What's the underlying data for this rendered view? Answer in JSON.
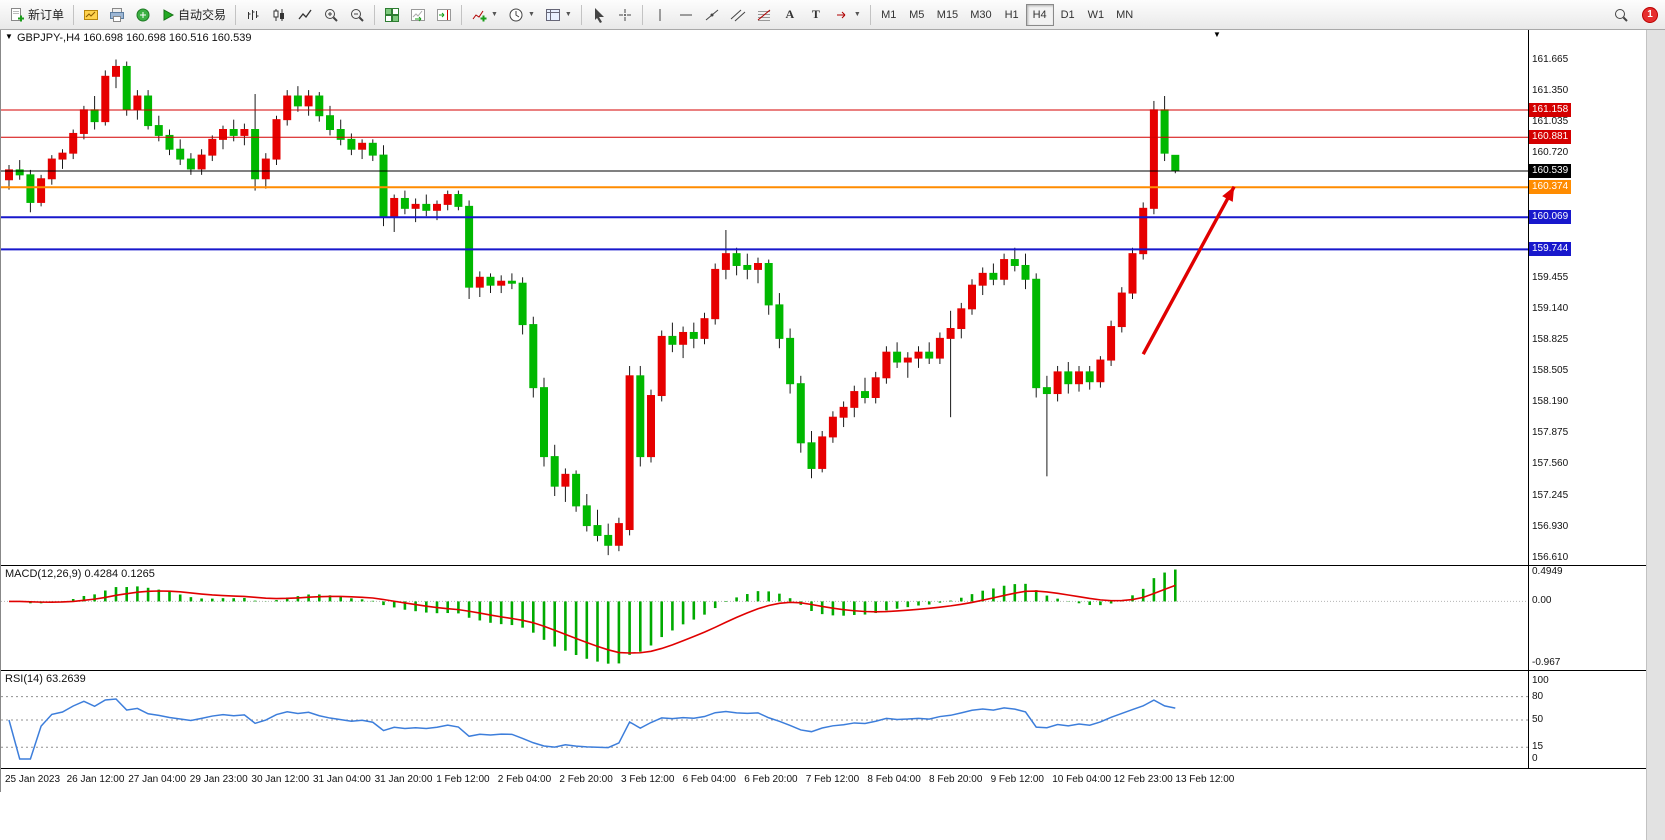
{
  "toolbar": {
    "new_order": "新订单",
    "autotrading": "自动交易",
    "text_tool": "A",
    "label_tool": "T",
    "timeframes": [
      "M1",
      "M5",
      "M15",
      "M30",
      "H1",
      "H4",
      "D1",
      "W1",
      "MN"
    ],
    "active_timeframe": "H4",
    "notification_badge": "1"
  },
  "chart_header": {
    "title": "GBPJPY-,H4 160.698 160.698 160.516 160.539"
  },
  "chart_data": {
    "type": "candlestick",
    "symbol": "GBPJPY-",
    "period": "H4",
    "ohlc_display": {
      "open": "160.698",
      "high": "160.698",
      "low": "160.516",
      "close": "160.539"
    },
    "plot_price_max": 161.97,
    "plot_price_min": 156.55,
    "axis_labels": [
      "161.665",
      "161.350",
      "161.035",
      "160.720",
      "159.455",
      "159.140",
      "158.825",
      "158.505",
      "158.190",
      "157.875",
      "157.560",
      "157.245",
      "156.930",
      "156.610"
    ],
    "price_lines": [
      {
        "price": 161.158,
        "color": "#d40000",
        "badge": "161.158",
        "width": 1
      },
      {
        "price": 160.881,
        "color": "#d40000",
        "badge": "160.881",
        "width": 1
      },
      {
        "price": 160.539,
        "color": "#000000",
        "badge": "160.539",
        "width": 1
      },
      {
        "price": 160.374,
        "color": "#ff8c00",
        "badge": "160.374",
        "width": 2
      },
      {
        "price": 160.069,
        "color": "#1818cc",
        "badge": "160.069",
        "width": 2
      },
      {
        "price": 159.744,
        "color": "#1818cc",
        "badge": "159.744",
        "width": 2
      }
    ],
    "colors": {
      "up": "#e60000",
      "down": "#00b800",
      "wick": "#1a1a1a"
    },
    "arrow": {
      "from_bar": 106,
      "from_price": 158.68,
      "to_bar": 114.5,
      "to_price": 160.38,
      "color": "#e00000"
    },
    "time_labels": [
      "25 Jan 2023",
      "26 Jan 12:00",
      "27 Jan 04:00",
      "29 Jan 23:00",
      "30 Jan 12:00",
      "31 Jan 04:00",
      "31 Jan 20:00",
      "1 Feb 12:00",
      "2 Feb 04:00",
      "2 Feb 20:00",
      "3 Feb 12:00",
      "6 Feb 04:00",
      "6 Feb 20:00",
      "7 Feb 12:00",
      "8 Feb 04:00",
      "8 Feb 20:00",
      "9 Feb 12:00",
      "10 Feb 04:00",
      "12 Feb 23:00",
      "13 Feb 12:00"
    ],
    "candles": [
      [
        160.45,
        160.6,
        160.35,
        160.55
      ],
      [
        160.55,
        160.65,
        160.45,
        160.5
      ],
      [
        160.5,
        160.55,
        160.12,
        160.22
      ],
      [
        160.22,
        160.5,
        160.18,
        160.46
      ],
      [
        160.46,
        160.7,
        160.4,
        160.66
      ],
      [
        160.66,
        160.76,
        160.56,
        160.72
      ],
      [
        160.72,
        160.96,
        160.66,
        160.92
      ],
      [
        160.92,
        161.2,
        160.86,
        161.16
      ],
      [
        161.16,
        161.3,
        160.96,
        161.04
      ],
      [
        161.04,
        161.56,
        161.0,
        161.5
      ],
      [
        161.5,
        161.67,
        161.38,
        161.6
      ],
      [
        161.6,
        161.65,
        161.1,
        161.16
      ],
      [
        161.16,
        161.36,
        161.06,
        161.3
      ],
      [
        161.3,
        161.36,
        160.96,
        161.0
      ],
      [
        161.0,
        161.1,
        160.84,
        160.9
      ],
      [
        160.9,
        160.96,
        160.7,
        160.76
      ],
      [
        160.76,
        160.86,
        160.6,
        160.66
      ],
      [
        160.66,
        160.72,
        160.5,
        160.56
      ],
      [
        160.56,
        160.76,
        160.5,
        160.7
      ],
      [
        160.7,
        160.9,
        160.64,
        160.86
      ],
      [
        160.86,
        161.0,
        160.76,
        160.96
      ],
      [
        160.96,
        161.06,
        160.84,
        160.9
      ],
      [
        160.9,
        161.02,
        160.8,
        160.96
      ],
      [
        160.96,
        161.32,
        160.34,
        160.46
      ],
      [
        160.46,
        160.72,
        160.36,
        160.66
      ],
      [
        160.66,
        161.1,
        160.6,
        161.06
      ],
      [
        161.06,
        161.36,
        161.0,
        161.3
      ],
      [
        161.3,
        161.4,
        161.14,
        161.2
      ],
      [
        161.2,
        161.36,
        161.1,
        161.3
      ],
      [
        161.3,
        161.34,
        161.04,
        161.1
      ],
      [
        161.1,
        161.2,
        160.9,
        160.96
      ],
      [
        160.96,
        161.06,
        160.8,
        160.86
      ],
      [
        160.86,
        160.92,
        160.7,
        160.76
      ],
      [
        160.76,
        160.86,
        160.66,
        160.82
      ],
      [
        160.82,
        160.86,
        160.64,
        160.7
      ],
      [
        160.7,
        160.8,
        159.98,
        160.08
      ],
      [
        160.08,
        160.3,
        159.92,
        160.26
      ],
      [
        160.26,
        160.34,
        160.1,
        160.16
      ],
      [
        160.16,
        160.26,
        160.02,
        160.2
      ],
      [
        160.2,
        160.3,
        160.08,
        160.14
      ],
      [
        160.14,
        160.24,
        160.04,
        160.2
      ],
      [
        160.2,
        160.34,
        160.14,
        160.3
      ],
      [
        160.3,
        160.34,
        160.14,
        160.18
      ],
      [
        160.18,
        160.24,
        159.24,
        159.36
      ],
      [
        159.36,
        159.52,
        159.26,
        159.46
      ],
      [
        159.46,
        159.5,
        159.3,
        159.38
      ],
      [
        159.38,
        159.48,
        159.3,
        159.42
      ],
      [
        159.42,
        159.5,
        159.34,
        159.4
      ],
      [
        159.4,
        159.46,
        158.88,
        158.98
      ],
      [
        158.98,
        159.06,
        158.24,
        158.34
      ],
      [
        158.34,
        158.44,
        157.54,
        157.64
      ],
      [
        157.64,
        157.76,
        157.24,
        157.34
      ],
      [
        157.34,
        157.52,
        157.18,
        157.46
      ],
      [
        157.46,
        157.5,
        157.08,
        157.14
      ],
      [
        157.14,
        157.26,
        156.88,
        156.94
      ],
      [
        156.94,
        157.1,
        156.78,
        156.84
      ],
      [
        156.84,
        156.96,
        156.64,
        156.74
      ],
      [
        156.74,
        157.02,
        156.68,
        156.96
      ],
      [
        156.9,
        158.56,
        156.84,
        158.46
      ],
      [
        158.46,
        158.56,
        157.54,
        157.64
      ],
      [
        157.64,
        158.32,
        157.58,
        158.26
      ],
      [
        158.26,
        158.92,
        158.2,
        158.86
      ],
      [
        158.86,
        159.0,
        158.7,
        158.78
      ],
      [
        158.78,
        158.96,
        158.64,
        158.9
      ],
      [
        158.9,
        159.0,
        158.74,
        158.84
      ],
      [
        158.84,
        159.1,
        158.78,
        159.04
      ],
      [
        159.04,
        159.6,
        158.98,
        159.54
      ],
      [
        159.54,
        159.94,
        159.44,
        159.7
      ],
      [
        159.7,
        159.76,
        159.48,
        159.58
      ],
      [
        159.58,
        159.7,
        159.44,
        159.54
      ],
      [
        159.54,
        159.66,
        159.4,
        159.6
      ],
      [
        159.6,
        159.64,
        159.08,
        159.18
      ],
      [
        159.18,
        159.3,
        158.74,
        158.84
      ],
      [
        158.84,
        158.94,
        158.28,
        158.38
      ],
      [
        158.38,
        158.46,
        157.68,
        157.78
      ],
      [
        157.78,
        157.9,
        157.42,
        157.52
      ],
      [
        157.52,
        157.9,
        157.48,
        157.84
      ],
      [
        157.84,
        158.1,
        157.78,
        158.04
      ],
      [
        158.04,
        158.2,
        157.94,
        158.14
      ],
      [
        158.14,
        158.36,
        158.04,
        158.3
      ],
      [
        158.3,
        158.44,
        158.18,
        158.24
      ],
      [
        158.24,
        158.5,
        158.18,
        158.44
      ],
      [
        158.44,
        158.76,
        158.38,
        158.7
      ],
      [
        158.7,
        158.8,
        158.54,
        158.6
      ],
      [
        158.6,
        158.7,
        158.44,
        158.64
      ],
      [
        158.64,
        158.76,
        158.54,
        158.7
      ],
      [
        158.7,
        158.8,
        158.58,
        158.64
      ],
      [
        158.64,
        158.9,
        158.58,
        158.84
      ],
      [
        158.84,
        159.12,
        158.04,
        158.94
      ],
      [
        158.94,
        159.2,
        158.84,
        159.14
      ],
      [
        159.14,
        159.44,
        159.08,
        159.38
      ],
      [
        159.38,
        159.56,
        159.28,
        159.5
      ],
      [
        159.5,
        159.6,
        159.38,
        159.44
      ],
      [
        159.44,
        159.7,
        159.38,
        159.64
      ],
      [
        159.64,
        159.76,
        159.52,
        159.58
      ],
      [
        159.58,
        159.7,
        159.34,
        159.44
      ],
      [
        159.44,
        159.5,
        158.24,
        158.34
      ],
      [
        158.34,
        158.46,
        157.44,
        158.28
      ],
      [
        158.28,
        158.56,
        158.2,
        158.5
      ],
      [
        158.5,
        158.6,
        158.28,
        158.38
      ],
      [
        158.38,
        158.56,
        158.3,
        158.5
      ],
      [
        158.5,
        158.56,
        158.32,
        158.4
      ],
      [
        158.4,
        158.66,
        158.34,
        158.62
      ],
      [
        158.62,
        159.02,
        158.56,
        158.96
      ],
      [
        158.96,
        159.36,
        158.9,
        159.3
      ],
      [
        159.3,
        159.76,
        159.24,
        159.7
      ],
      [
        159.7,
        160.22,
        159.64,
        160.16
      ],
      [
        160.16,
        161.25,
        160.1,
        161.16
      ],
      [
        161.16,
        161.3,
        160.64,
        160.72
      ],
      [
        160.698,
        160.698,
        160.516,
        160.539
      ]
    ]
  },
  "macd": {
    "label": "MACD(12,26,9) 0.4284 0.1265",
    "fast": 12,
    "slow": 26,
    "signal": 9,
    "value_main": "0.4284",
    "value_signal": "0.1265",
    "axis_labels": [
      "0.4949",
      "0.00",
      "-0.967"
    ],
    "axis_values": [
      0.4949,
      0,
      -0.967
    ],
    "plot_max": 0.55,
    "plot_min": -1.05,
    "histogram_color": "#00aa00",
    "signal_color": "#e00000"
  },
  "rsi": {
    "label": "RSI(14) 63.2639",
    "period": 14,
    "value": "63.2639",
    "axis_labels": [
      "100",
      "80",
      "50",
      "15",
      "0"
    ],
    "axis_values": [
      100,
      80,
      50,
      15,
      0
    ],
    "levels": [
      80,
      50,
      15
    ],
    "line_color": "#3d7edb"
  }
}
